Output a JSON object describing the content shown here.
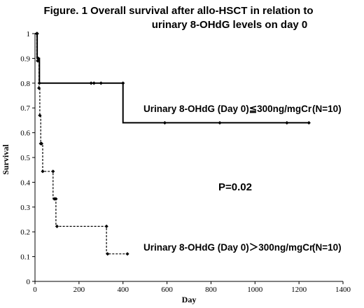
{
  "chart_data": {
    "type": "line",
    "title_line1": "Figure. 1  Overall survival after allo-HSCT in relation to",
    "title_line2": "urinary 8-OHdG levels on day 0",
    "xlabel": "Day",
    "ylabel": "Survival",
    "xlim": [
      0,
      1400
    ],
    "ylim": [
      0,
      1
    ],
    "xticks": [
      "0",
      "200",
      "400",
      "600",
      "800",
      "1000",
      "1200",
      "1400"
    ],
    "yticks": [
      "0",
      "0.1",
      "0.2",
      "0.3",
      "0.4",
      "0.5",
      "0.6",
      "0.7",
      "0.8",
      "0.9",
      "1"
    ],
    "xtick_values": [
      0,
      200,
      400,
      600,
      800,
      1000,
      1200,
      1400
    ],
    "ytick_values": [
      0,
      0.1,
      0.2,
      0.3,
      0.4,
      0.5,
      0.6,
      0.7,
      0.8,
      0.9,
      1
    ],
    "p_value": "P=0.02",
    "series": [
      {
        "style": "solid",
        "label": "Urinary 8-OHdG (Day 0)≦300ng/mgCr",
        "n": "(N=10)",
        "steps": [
          [
            0,
            1
          ],
          [
            10,
            1
          ],
          [
            10,
            0.9
          ],
          [
            20,
            0.9
          ],
          [
            20,
            0.8
          ],
          [
            400,
            0.8
          ],
          [
            400,
            0.64
          ],
          [
            1245,
            0.64
          ]
        ],
        "markers": [
          [
            10,
            1
          ],
          [
            15,
            0.9
          ],
          [
            20,
            0.8
          ],
          [
            255,
            0.8
          ],
          [
            268,
            0.8
          ],
          [
            300,
            0.8
          ],
          [
            400,
            0.8
          ],
          [
            590,
            0.64
          ],
          [
            840,
            0.64
          ],
          [
            1145,
            0.64
          ],
          [
            1245,
            0.64
          ]
        ]
      },
      {
        "style": "dashed",
        "label": "Urinary 8-OHdG (Day 0)＞300ng/mgCr",
        "n": "(N=10)",
        "steps": [
          [
            0,
            1
          ],
          [
            8,
            1
          ],
          [
            8,
            0.89
          ],
          [
            18,
            0.89
          ],
          [
            18,
            0.78
          ],
          [
            22,
            0.78
          ],
          [
            22,
            0.67
          ],
          [
            26,
            0.67
          ],
          [
            26,
            0.556
          ],
          [
            35,
            0.556
          ],
          [
            35,
            0.444
          ],
          [
            82,
            0.444
          ],
          [
            82,
            0.333
          ],
          [
            95,
            0.333
          ],
          [
            95,
            0.222
          ],
          [
            325,
            0.222
          ],
          [
            325,
            0.111
          ],
          [
            420,
            0.111
          ]
        ],
        "markers": [
          [
            8,
            1
          ],
          [
            12,
            0.89
          ],
          [
            18,
            0.78
          ],
          [
            22,
            0.67
          ],
          [
            26,
            0.556
          ],
          [
            30,
            0.556
          ],
          [
            35,
            0.444
          ],
          [
            82,
            0.444
          ],
          [
            88,
            0.333
          ],
          [
            95,
            0.333
          ],
          [
            100,
            0.222
          ],
          [
            325,
            0.222
          ],
          [
            330,
            0.111
          ],
          [
            420,
            0.111
          ]
        ]
      }
    ]
  }
}
